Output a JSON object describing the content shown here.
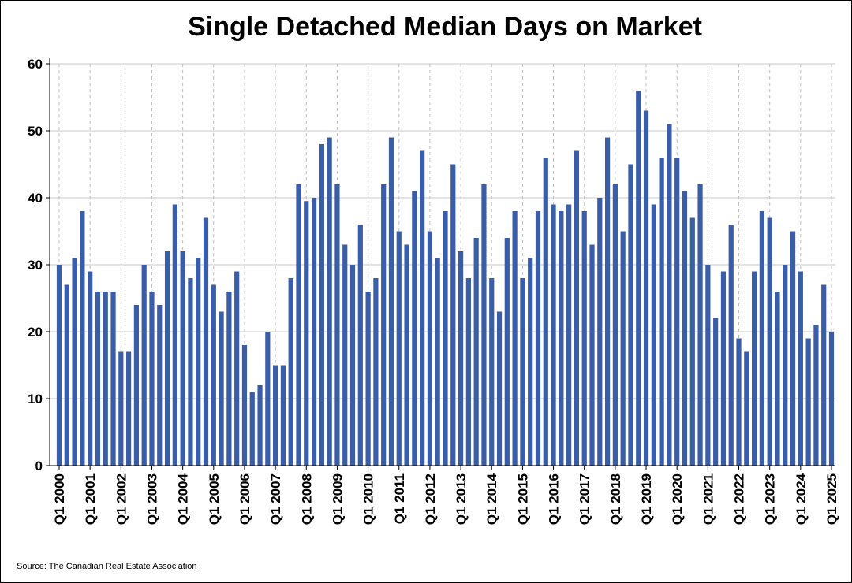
{
  "chart_data": {
    "type": "bar",
    "title": "Single Detached Median Days on Market",
    "xlabel": "",
    "ylabel": "",
    "ylim": [
      0,
      60
    ],
    "yticks": [
      0,
      10,
      20,
      30,
      40,
      50,
      60
    ],
    "grid": "horizontal solid, vertical dashed at year starts",
    "bar_color": "#3a5da8",
    "categories": [
      "Q1 2000",
      "Q2 2000",
      "Q3 2000",
      "Q4 2000",
      "Q1 2001",
      "Q2 2001",
      "Q3 2001",
      "Q4 2001",
      "Q1 2002",
      "Q2 2002",
      "Q3 2002",
      "Q4 2002",
      "Q1 2003",
      "Q2 2003",
      "Q3 2003",
      "Q4 2003",
      "Q1 2004",
      "Q2 2004",
      "Q3 2004",
      "Q4 2004",
      "Q1 2005",
      "Q2 2005",
      "Q3 2005",
      "Q4 2005",
      "Q1 2006",
      "Q2 2006",
      "Q3 2006",
      "Q4 2006",
      "Q1 2007",
      "Q2 2007",
      "Q3 2007",
      "Q4 2007",
      "Q1 2008",
      "Q2 2008",
      "Q3 2008",
      "Q4 2008",
      "Q1 2009",
      "Q2 2009",
      "Q3 2009",
      "Q4 2009",
      "Q1 2010",
      "Q2 2010",
      "Q3 2010",
      "Q4 2010",
      "Q1 2011",
      "Q2 2011",
      "Q3 2011",
      "Q4 2011",
      "Q1 2012",
      "Q2 2012",
      "Q3 2012",
      "Q4 2012",
      "Q1 2013",
      "Q2 2013",
      "Q3 2013",
      "Q4 2013",
      "Q1 2014",
      "Q2 2014",
      "Q3 2014",
      "Q4 2014",
      "Q1 2015",
      "Q2 2015",
      "Q3 2015",
      "Q4 2015",
      "Q1 2016",
      "Q2 2016",
      "Q3 2016",
      "Q4 2016",
      "Q1 2017",
      "Q2 2017",
      "Q3 2017",
      "Q4 2017",
      "Q1 2018",
      "Q2 2018",
      "Q3 2018",
      "Q4 2018",
      "Q1 2019",
      "Q2 2019",
      "Q3 2019",
      "Q4 2019",
      "Q1 2020",
      "Q2 2020",
      "Q3 2020",
      "Q4 2020",
      "Q1 2021",
      "Q2 2021",
      "Q3 2021",
      "Q4 2021",
      "Q1 2022",
      "Q2 2022",
      "Q3 2022",
      "Q4 2022",
      "Q1 2023",
      "Q2 2023",
      "Q3 2023",
      "Q4 2023",
      "Q1 2024",
      "Q2 2024",
      "Q3 2024",
      "Q4 2024",
      "Q1 2025"
    ],
    "values": [
      30,
      27,
      31,
      38,
      29,
      26,
      26,
      26,
      17,
      17,
      24,
      30,
      26,
      24,
      32,
      39,
      32,
      28,
      31,
      37,
      27,
      23,
      26,
      29,
      18,
      11,
      12,
      20,
      15,
      15,
      28,
      42,
      39.5,
      40,
      48,
      49,
      42,
      33,
      30,
      36,
      26,
      28,
      42,
      49,
      35,
      33,
      41,
      47,
      35,
      31,
      38,
      45,
      32,
      28,
      34,
      42,
      28,
      23,
      34,
      38,
      28,
      31,
      38,
      46,
      39,
      38,
      39,
      47,
      38,
      33,
      40,
      49,
      42,
      35,
      45,
      56,
      53,
      39,
      46,
      51,
      46,
      41,
      37,
      42,
      30,
      22,
      29,
      36,
      19,
      17,
      29,
      38,
      37,
      26,
      30,
      35,
      29,
      19,
      21,
      27,
      20
    ],
    "xtick_labels": [
      "Q1 2000",
      "Q1 2001",
      "Q1 2002",
      "Q1 2003",
      "Q1 2004",
      "Q1 2005",
      "Q1 2006",
      "Q1 2007",
      "Q1 2008",
      "Q1 2009",
      "Q1 2010",
      "Q1 2011",
      "Q1 2012",
      "Q1 2013",
      "Q1 2014",
      "Q1 2015",
      "Q1 2016",
      "Q1 2017",
      "Q1 2018",
      "Q1 2019",
      "Q1 2020",
      "Q1 2021",
      "Q1 2022",
      "Q1 2023",
      "Q1 2024",
      "Q1 2025"
    ]
  },
  "footer": {
    "source": "Source: The Canadian Real Estate Association"
  }
}
